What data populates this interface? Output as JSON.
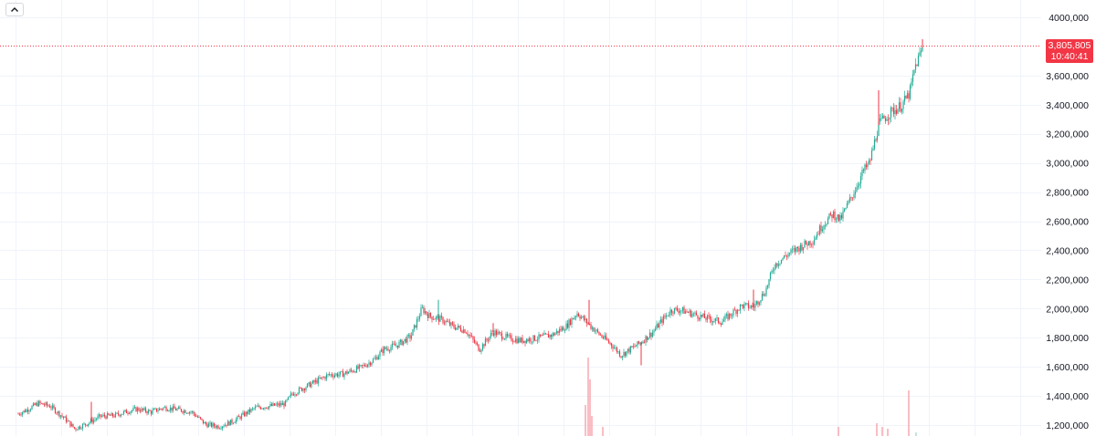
{
  "toolbar": {
    "collapse_icon": "chevron-up-icon"
  },
  "colors": {
    "up": "#22ab94",
    "down": "#f23645",
    "grid": "#f0f3fa",
    "axis_text": "#131722",
    "last_price_line": "#f23645",
    "volume_up": "#b5dbd3",
    "volume_down": "#f7a9b0"
  },
  "last_price": {
    "value": "3,805,805",
    "time": "10:40:41"
  },
  "chart_data": {
    "type": "candlestick",
    "y_axis": {
      "min": 1150000,
      "max": 4060000,
      "ticks": [
        1200000,
        1400000,
        1600000,
        1800000,
        2000000,
        2200000,
        2400000,
        2600000,
        2800000,
        3000000,
        3200000,
        3400000,
        3600000,
        4000000
      ],
      "tick_labels": [
        "1,200,000",
        "1,400,000",
        "1,600,000",
        "1,800,000",
        "2,000,000",
        "2,200,000",
        "2,400,000",
        "2,600,000",
        "2,800,000",
        "3,000,000",
        "3,200,000",
        "3,400,000",
        "3,600,000",
        "4000,000"
      ]
    },
    "grid": true,
    "last_price_value": 3805805,
    "trend": [
      [
        0,
        1230000
      ],
      [
        12,
        1255000
      ],
      [
        28,
        1300000
      ],
      [
        42,
        1350000
      ],
      [
        55,
        1330000
      ],
      [
        70,
        1250000
      ],
      [
        82,
        1175000
      ],
      [
        95,
        1210000
      ],
      [
        110,
        1260000
      ],
      [
        125,
        1265000
      ],
      [
        140,
        1295000
      ],
      [
        150,
        1310000
      ],
      [
        165,
        1290000
      ],
      [
        180,
        1320000
      ],
      [
        196,
        1305000
      ],
      [
        210,
        1290000
      ],
      [
        225,
        1205000
      ],
      [
        240,
        1190000
      ],
      [
        255,
        1225000
      ],
      [
        265,
        1265000
      ],
      [
        280,
        1320000
      ],
      [
        295,
        1330000
      ],
      [
        312,
        1345000
      ],
      [
        320,
        1415000
      ],
      [
        340,
        1480000
      ],
      [
        360,
        1545000
      ],
      [
        375,
        1550000
      ],
      [
        395,
        1595000
      ],
      [
        410,
        1650000
      ],
      [
        420,
        1720000
      ],
      [
        435,
        1750000
      ],
      [
        450,
        1810000
      ],
      [
        462,
        2000000
      ],
      [
        470,
        1950000
      ],
      [
        485,
        1920000
      ],
      [
        495,
        1880000
      ],
      [
        510,
        1850000
      ],
      [
        525,
        1720000
      ],
      [
        540,
        1840000
      ],
      [
        555,
        1800000
      ],
      [
        570,
        1780000
      ],
      [
        590,
        1800000
      ],
      [
        605,
        1820000
      ],
      [
        620,
        1880000
      ],
      [
        632,
        1970000
      ],
      [
        640,
        1920000
      ],
      [
        655,
        1830000
      ],
      [
        670,
        1750000
      ],
      [
        680,
        1680000
      ],
      [
        690,
        1720000
      ],
      [
        700,
        1760000
      ],
      [
        715,
        1840000
      ],
      [
        725,
        1920000
      ],
      [
        735,
        1990000
      ],
      [
        745,
        1990000
      ],
      [
        760,
        1960000
      ],
      [
        775,
        1930000
      ],
      [
        790,
        1910000
      ],
      [
        800,
        1960000
      ],
      [
        812,
        2020000
      ],
      [
        825,
        2010000
      ],
      [
        838,
        2120000
      ],
      [
        848,
        2300000
      ],
      [
        862,
        2370000
      ],
      [
        878,
        2430000
      ],
      [
        890,
        2470000
      ],
      [
        900,
        2570000
      ],
      [
        912,
        2650000
      ],
      [
        920,
        2610000
      ],
      [
        935,
        2800000
      ],
      [
        945,
        2940000
      ],
      [
        952,
        3000000
      ],
      [
        962,
        3260000
      ],
      [
        970,
        3320000
      ],
      [
        978,
        3360000
      ],
      [
        986,
        3390000
      ],
      [
        990,
        3420000
      ],
      [
        996,
        3480000
      ],
      [
        1002,
        3660000
      ],
      [
        1010,
        3790000
      ]
    ],
    "spikes": [
      [
        480,
        2060000,
        "up"
      ],
      [
        645,
        2060000,
        "down"
      ],
      [
        825,
        2130000,
        "down"
      ],
      [
        962,
        3500000,
        "down"
      ],
      [
        1010,
        3850000,
        "down"
      ],
      [
        702,
        1610000,
        "down"
      ],
      [
        100,
        1360000,
        "down"
      ],
      [
        540,
        1900000,
        "down"
      ]
    ],
    "volume_bars": [
      [
        644,
        86,
        "down"
      ],
      [
        646,
        62,
        "down"
      ],
      [
        641,
        34,
        "down"
      ],
      [
        648,
        22,
        "down"
      ],
      [
        660,
        10,
        "down"
      ],
      [
        918,
        10,
        "down"
      ],
      [
        960,
        14,
        "down"
      ],
      [
        966,
        10,
        "down"
      ],
      [
        972,
        8,
        "down"
      ],
      [
        995,
        50,
        "down"
      ],
      [
        1003,
        4,
        "up"
      ]
    ]
  }
}
